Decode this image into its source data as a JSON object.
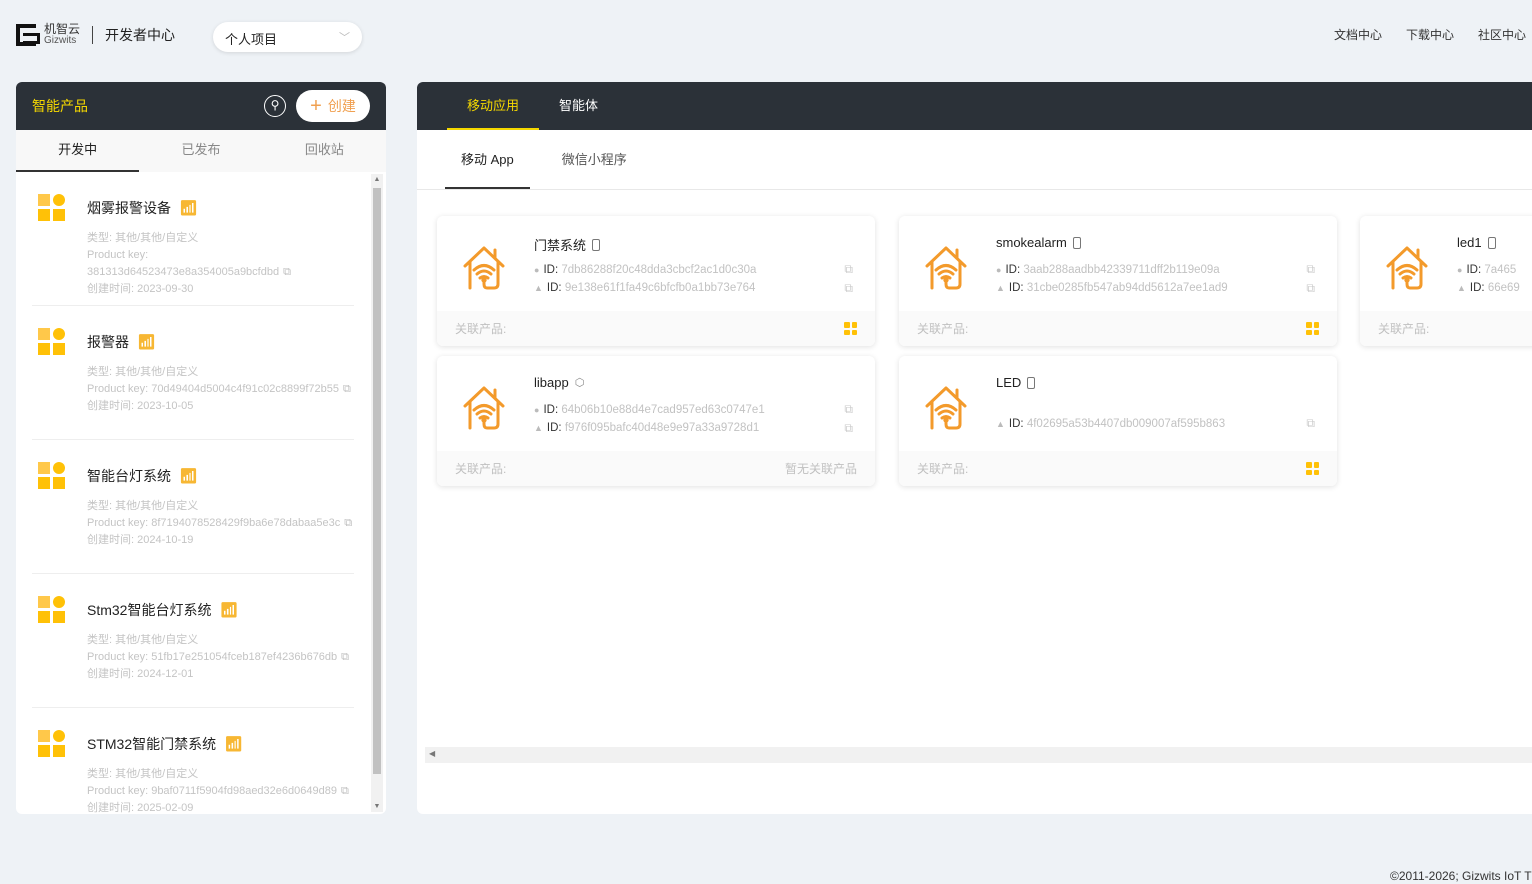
{
  "header": {
    "brand_cn": "机智云",
    "brand_en": "Gizwits",
    "title": "开发者中心",
    "project_select": "个人项目",
    "links": [
      "文档中心",
      "下载中心",
      "社区中心"
    ]
  },
  "left": {
    "title": "智能产品",
    "create_label": "创建",
    "tabs": [
      "开发中",
      "已发布",
      "回收站"
    ],
    "active_tab": 0,
    "products": [
      {
        "name": "烟雾报警设备",
        "type": "类型: 其他/其他/自定义",
        "key": "Product key: 381313d64523473e8a354005a9bcfdbd",
        "created": "创建时间: 2023-09-30"
      },
      {
        "name": "报警器",
        "type": "类型: 其他/其他/自定义",
        "key": "Product key: 70d49404d5004c4f91c02c8899f72b55",
        "created": "创建时间: 2023-10-05"
      },
      {
        "name": "智能台灯系统",
        "type": "类型: 其他/其他/自定义",
        "key": "Product key: 8f7194078528429f9ba6e78dabaa5e3c",
        "created": "创建时间: 2024-10-19"
      },
      {
        "name": "Stm32智能台灯系统",
        "type": "类型: 其他/其他/自定义",
        "key": "Product key: 51fb17e251054fceb187ef4236b676db",
        "created": "创建时间: 2024-12-01"
      },
      {
        "name": "STM32智能门禁系统",
        "type": "类型: 其他/其他/自定义",
        "key": "Product key: 9baf0711f5904fd98aed32e6d0649d89",
        "created": "创建时间: 2025-02-09"
      }
    ]
  },
  "right": {
    "tabs": [
      "移动应用",
      "智能体"
    ],
    "active_tab": 0,
    "subtabs": [
      "移动 App",
      "微信小程序"
    ],
    "active_subtab": 0,
    "id_label": "ID:",
    "related_label": "关联产品:",
    "apps": [
      {
        "name": "门禁系统",
        "ios_id": "7db86288f20c48dda3cbcf2ac1d0c30a",
        "android_id": "9e138e61f1fa49c6bfcfb0a1bb73e764",
        "related": ""
      },
      {
        "name": "smokealarm",
        "ios_id": "3aab288aadbb42339711dff2b119e09a",
        "android_id": "31cbe0285fb547ab94dd5612a7ee1ad9",
        "related": ""
      },
      {
        "name": "led1",
        "ios_id": "7a465",
        "android_id": "66e69",
        "related": ""
      },
      {
        "name": "libapp",
        "ios_id": "64b06b10e88d4e7cad957ed63c0747e1",
        "android_id": "f976f095bafc40d48e9e97a33a9728d1",
        "related": "暂无关联产品"
      },
      {
        "name": "LED",
        "ios_id": null,
        "android_id": "4f02695a53b4407db009007af595b863",
        "related": ""
      }
    ]
  },
  "footer": "©2011-2026;  Gizwits IoT T",
  "colors": {
    "accent": "#f5d800",
    "dark": "#2b3138",
    "orange": "#f39a2b",
    "product_icon": "#ffc107"
  }
}
